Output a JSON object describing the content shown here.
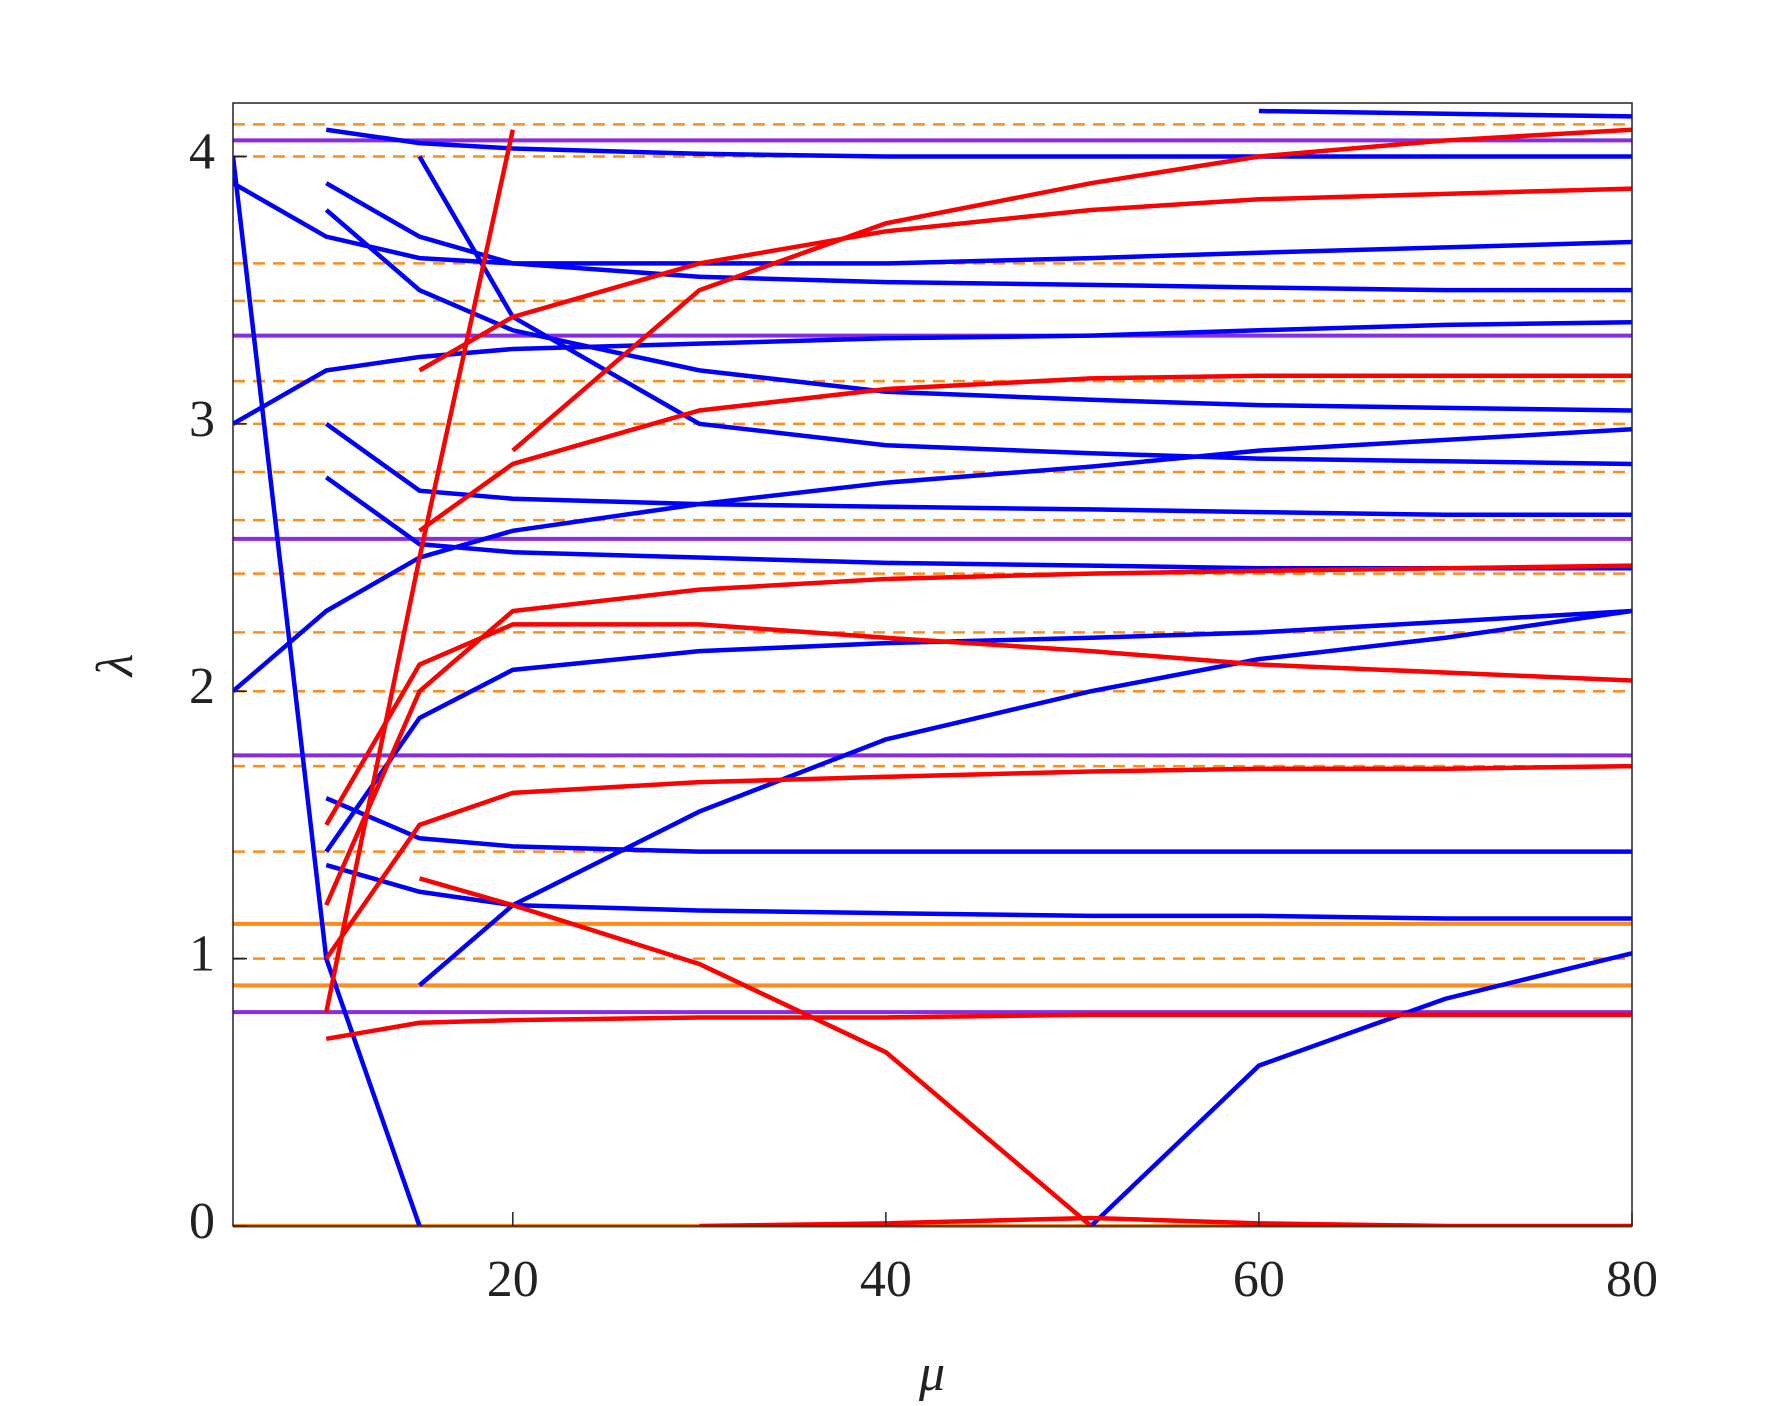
{
  "chart_data": {
    "type": "line",
    "xlabel": "μ",
    "ylabel": "λ",
    "xlim": [
      5,
      80
    ],
    "ylim": [
      0,
      4.2
    ],
    "xticks": [
      20,
      40,
      60,
      80
    ],
    "yticks": [
      0,
      1,
      2,
      3,
      4
    ],
    "x": [
      5,
      10,
      15,
      20,
      30,
      40,
      51,
      60,
      70,
      80
    ],
    "reference_lines": [
      {
        "value": 4.06,
        "color": "#8a2be2",
        "dashed": false
      },
      {
        "value": 3.33,
        "color": "#8a2be2",
        "dashed": false
      },
      {
        "value": 2.57,
        "color": "#8a2be2",
        "dashed": false
      },
      {
        "value": 1.76,
        "color": "#8a2be2",
        "dashed": false
      },
      {
        "value": 0.8,
        "color": "#8a2be2",
        "dashed": false
      },
      {
        "value": 1.13,
        "color": "#ff8c1a",
        "dashed": false
      },
      {
        "value": 0.9,
        "color": "#ff8c1a",
        "dashed": false
      },
      {
        "value": 0,
        "color": "#ff8c1a",
        "dashed": false
      },
      {
        "value": 4.12,
        "color": "#ff8c1a",
        "dashed": true
      },
      {
        "value": 4.0,
        "color": "#ff8c1a",
        "dashed": true
      },
      {
        "value": 3.6,
        "color": "#ff8c1a",
        "dashed": true
      },
      {
        "value": 3.46,
        "color": "#ff8c1a",
        "dashed": true
      },
      {
        "value": 3.16,
        "color": "#ff8c1a",
        "dashed": true
      },
      {
        "value": 3.0,
        "color": "#ff8c1a",
        "dashed": true
      },
      {
        "value": 2.82,
        "color": "#ff8c1a",
        "dashed": true
      },
      {
        "value": 2.64,
        "color": "#ff8c1a",
        "dashed": true
      },
      {
        "value": 2.44,
        "color": "#ff8c1a",
        "dashed": true
      },
      {
        "value": 2.22,
        "color": "#ff8c1a",
        "dashed": true
      },
      {
        "value": 2.0,
        "color": "#ff8c1a",
        "dashed": true
      },
      {
        "value": 1.72,
        "color": "#ff8c1a",
        "dashed": true
      },
      {
        "value": 1.4,
        "color": "#ff8c1a",
        "dashed": true
      },
      {
        "value": 1.0,
        "color": "#ff8c1a",
        "dashed": true
      }
    ],
    "series": [
      {
        "color": "#0000ff",
        "values": [
          null,
          null,
          null,
          null,
          null,
          null,
          null,
          4.17,
          4.16,
          4.15
        ]
      },
      {
        "color": "#0000ff",
        "values": [
          null,
          4.1,
          4.05,
          4.03,
          4.01,
          4.0,
          4.0,
          4.0,
          4.0,
          4.0
        ]
      },
      {
        "color": "#0000ff",
        "values": [
          3.9,
          3.7,
          3.62,
          3.6,
          3.6,
          3.6,
          3.62,
          3.64,
          3.66,
          3.68
        ]
      },
      {
        "color": "#0000ff",
        "values": [
          null,
          3.9,
          3.7,
          3.6,
          3.55,
          3.53,
          3.52,
          3.51,
          3.5,
          3.5
        ]
      },
      {
        "color": "#0000ff",
        "values": [
          3.0,
          3.2,
          3.25,
          3.28,
          3.3,
          3.32,
          3.33,
          3.35,
          3.37,
          3.38
        ]
      },
      {
        "color": "#0000ff",
        "values": [
          null,
          3.8,
          3.5,
          3.35,
          3.2,
          3.12,
          3.09,
          3.07,
          3.06,
          3.05
        ]
      },
      {
        "color": "#0000ff",
        "values": [
          null,
          null,
          4.0,
          3.4,
          3.0,
          2.92,
          2.89,
          2.87,
          2.86,
          2.85
        ]
      },
      {
        "color": "#0000ff",
        "values": [
          2.0,
          2.3,
          2.5,
          2.6,
          2.7,
          2.78,
          2.84,
          2.9,
          2.94,
          2.98
        ]
      },
      {
        "color": "#0000ff",
        "values": [
          null,
          3.0,
          2.75,
          2.72,
          2.7,
          2.69,
          2.68,
          2.67,
          2.66,
          2.66
        ]
      },
      {
        "color": "#0000ff",
        "values": [
          null,
          2.8,
          2.55,
          2.52,
          2.5,
          2.48,
          2.47,
          2.46,
          2.46,
          2.46
        ]
      },
      {
        "color": "#0000ff",
        "values": [
          null,
          1.4,
          1.9,
          2.08,
          2.15,
          2.18,
          2.2,
          2.22,
          2.26,
          2.3
        ]
      },
      {
        "color": "#0000ff",
        "values": [
          null,
          null,
          0.9,
          1.2,
          1.55,
          1.82,
          2.0,
          2.12,
          2.2,
          2.3
        ]
      },
      {
        "color": "#0000ff",
        "values": [
          null,
          1.35,
          1.25,
          1.2,
          1.18,
          1.17,
          1.16,
          1.16,
          1.15,
          1.15
        ]
      },
      {
        "color": "#0000ff",
        "values": [
          null,
          1.6,
          1.45,
          1.42,
          1.4,
          1.4,
          1.4,
          1.4,
          1.4,
          1.4
        ]
      },
      {
        "color": "#0000ff",
        "values": [
          null,
          null,
          null,
          null,
          null,
          null,
          0,
          0.6,
          0.85,
          1.02
        ]
      },
      {
        "color": "#0000ff",
        "values": [
          4.0,
          1.0,
          0,
          null,
          null,
          null,
          null,
          null,
          null,
          null
        ]
      },
      {
        "color": "#ff0000",
        "values": [
          null,
          null,
          1.3,
          1.2,
          0.98,
          0.65,
          0,
          null,
          null,
          null
        ]
      },
      {
        "color": "#ff0000",
        "values": [
          null,
          0.7,
          0.76,
          0.77,
          0.78,
          0.78,
          0.79,
          0.79,
          0.79,
          0.79
        ]
      },
      {
        "color": "#ff0000",
        "values": [
          null,
          1.0,
          1.5,
          1.62,
          1.66,
          1.68,
          1.7,
          1.71,
          1.71,
          1.72
        ]
      },
      {
        "color": "#ff0000",
        "values": [
          null,
          1.5,
          2.1,
          2.25,
          2.25,
          2.2,
          2.15,
          2.1,
          2.07,
          2.04
        ]
      },
      {
        "color": "#ff0000",
        "values": [
          null,
          1.2,
          2.0,
          2.3,
          2.38,
          2.42,
          2.44,
          2.45,
          2.46,
          2.47
        ]
      },
      {
        "color": "#ff0000",
        "values": [
          null,
          null,
          2.6,
          2.85,
          3.05,
          3.13,
          3.17,
          3.18,
          3.18,
          3.18
        ]
      },
      {
        "color": "#ff0000",
        "values": [
          null,
          null,
          3.2,
          3.4,
          3.6,
          3.72,
          3.8,
          3.84,
          3.86,
          3.88
        ]
      },
      {
        "color": "#ff0000",
        "values": [
          null,
          null,
          null,
          2.9,
          3.5,
          3.75,
          3.9,
          4.0,
          4.06,
          4.1
        ]
      },
      {
        "color": "#ff0000",
        "values": [
          null,
          0.8,
          2.5,
          4.1,
          null,
          null,
          null,
          null,
          null,
          null
        ]
      },
      {
        "color": "#ff0000",
        "values": [
          null,
          null,
          null,
          null,
          0,
          0.01,
          0.03,
          0.01,
          0,
          0
        ]
      }
    ]
  }
}
